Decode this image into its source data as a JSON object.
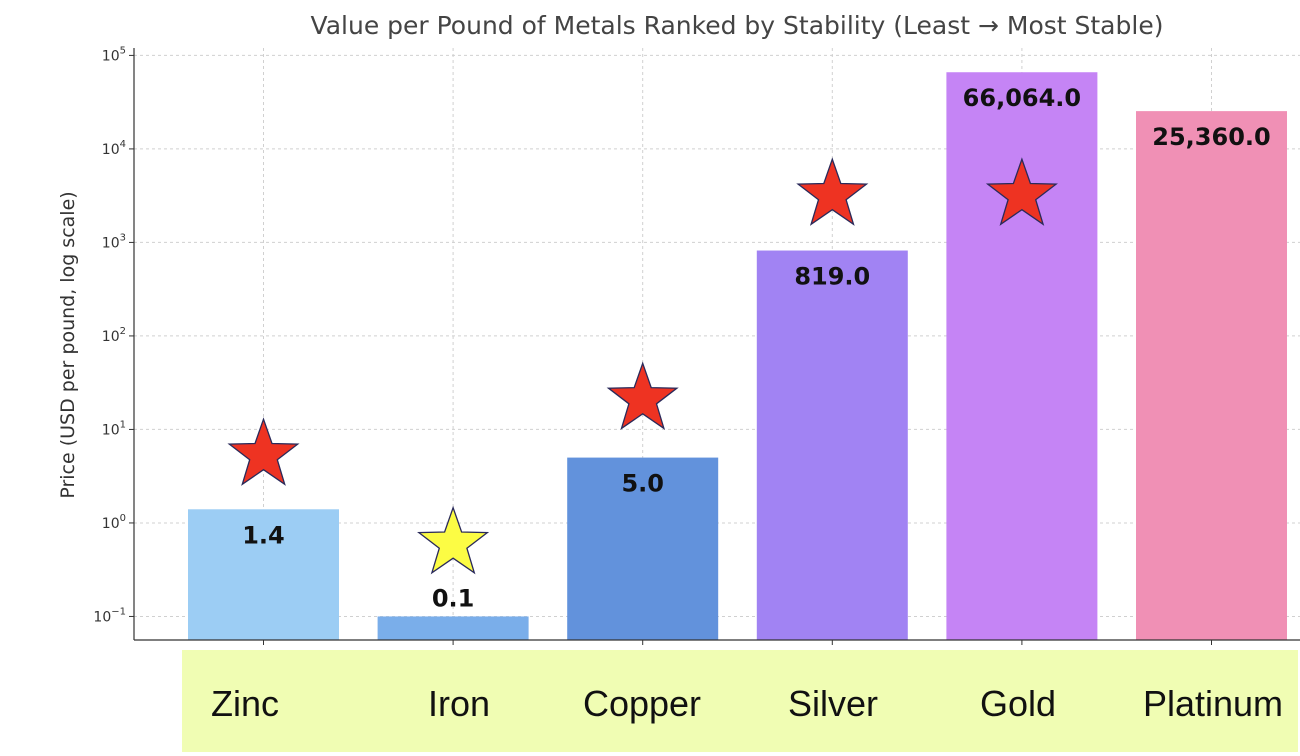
{
  "chart_data": {
    "type": "bar",
    "title": "Value per Pound of Metals Ranked by Stability (Least → Most Stable)",
    "ylabel": "Price (USD per pound, log scale)",
    "xlabel": "",
    "yscale": "log",
    "ylim": [
      0.056,
      120000
    ],
    "grid": true,
    "y_ticks": [
      {
        "value": 0.1,
        "base": "10",
        "exp": "−1"
      },
      {
        "value": 1,
        "base": "10",
        "exp": "0"
      },
      {
        "value": 10,
        "base": "10",
        "exp": "1"
      },
      {
        "value": 100,
        "base": "10",
        "exp": "2"
      },
      {
        "value": 1000,
        "base": "10",
        "exp": "3"
      },
      {
        "value": 10000,
        "base": "10",
        "exp": "4"
      },
      {
        "value": 100000,
        "base": "10",
        "exp": "5"
      }
    ],
    "categories": [
      "Zinc",
      "Iron",
      "Copper",
      "Silver",
      "Gold",
      "Platinum"
    ],
    "values": [
      1.4,
      0.1,
      5.0,
      819.0,
      66064.0,
      25360.0
    ],
    "value_labels": [
      "1.4",
      "0.1",
      "5.0",
      "819.0",
      "66,064.0",
      "25,360.0"
    ],
    "bar_colors": [
      "#9ccdf4",
      "#7aaeea",
      "#6292dc",
      "#a183f3",
      "#c584f5",
      "#f090b5"
    ],
    "markers": [
      {
        "category": "Zinc",
        "value": 5.3,
        "color": "#ee3322"
      },
      {
        "category": "Iron",
        "value": 0.6,
        "color": "#fcfc44"
      },
      {
        "category": "Copper",
        "value": 21,
        "color": "#ee3322"
      },
      {
        "category": "Silver",
        "value": 3200,
        "color": "#ee3322"
      },
      {
        "category": "Gold",
        "value": 3200,
        "color": "#ee3322"
      }
    ],
    "category_band_color": "#f0fdb3"
  }
}
